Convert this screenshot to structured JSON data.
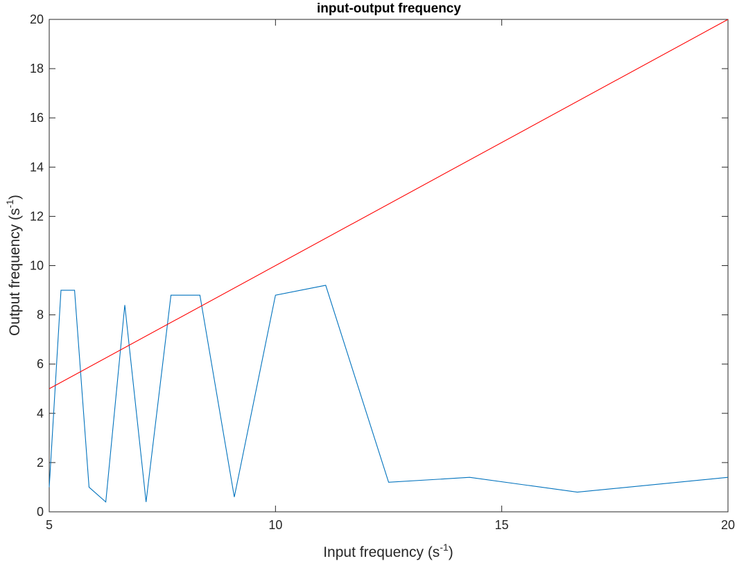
{
  "chart_data": {
    "type": "line",
    "title": "input-output frequency",
    "xlabel": {
      "text": "Input frequency (s",
      "sup": "-1",
      "close": ")"
    },
    "ylabel": {
      "text": "Output frequency (s",
      "sup": "-1",
      "close": ")"
    },
    "xlim": [
      5,
      20
    ],
    "ylim": [
      0,
      20
    ],
    "xticks": [
      5,
      10,
      15,
      20
    ],
    "yticks": [
      0,
      2,
      4,
      6,
      8,
      10,
      12,
      14,
      16,
      18,
      20
    ],
    "grid": false,
    "series": [
      {
        "color": "#0072bd",
        "x": [
          5,
          5.26,
          5.56,
          5.88,
          6.25,
          6.67,
          7.14,
          7.69,
          8.33,
          9.09,
          10,
          11.11,
          12.5,
          14.29,
          16.67,
          20
        ],
        "y": [
          1.0,
          9.0,
          9.0,
          1.0,
          0.4,
          8.4,
          0.4,
          8.8,
          8.8,
          0.6,
          8.8,
          9.2,
          1.2,
          1.4,
          0.8,
          1.4
        ]
      },
      {
        "color": "#ff0000",
        "x": [
          5,
          20
        ],
        "y": [
          5,
          20
        ]
      }
    ]
  }
}
